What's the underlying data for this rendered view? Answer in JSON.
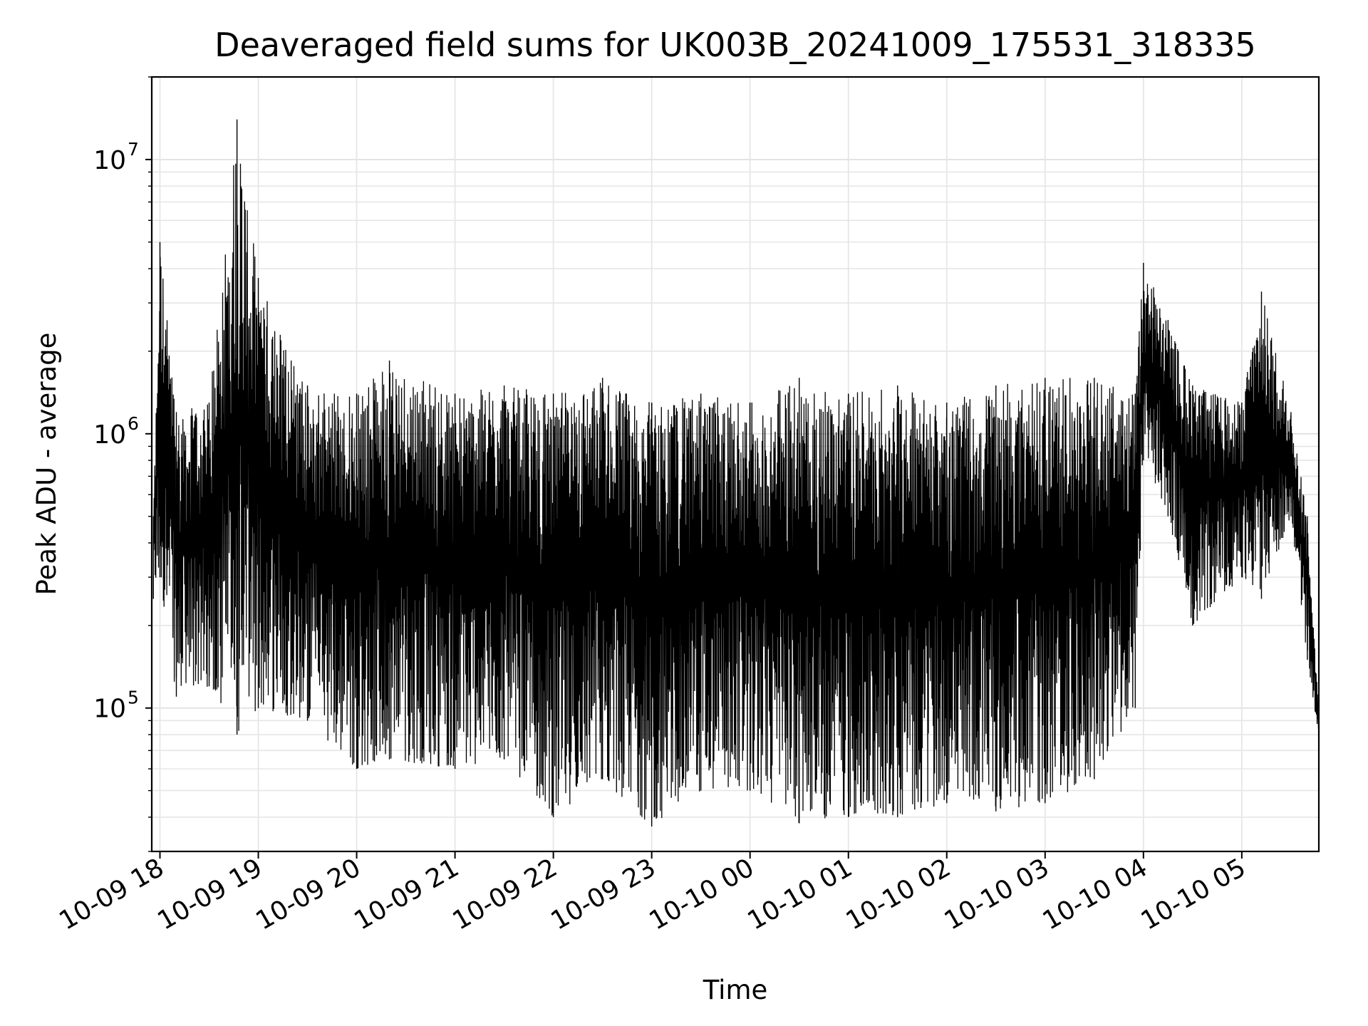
{
  "chart_data": {
    "type": "line",
    "title": "Deaveraged field sums for UK003B_20241009_175531_318335",
    "xlabel": "Time",
    "ylabel": "Peak ADU - average",
    "yscale": "log",
    "ylim": [
      30000,
      20000000
    ],
    "xlim": [
      "2024-10-09 17:55",
      "2024-10-10 05:47"
    ],
    "grid": true,
    "x_tick_labels": [
      "10-09 18",
      "10-09 19",
      "10-09 20",
      "10-09 21",
      "10-09 22",
      "10-09 23",
      "10-10 00",
      "10-10 01",
      "10-10 02",
      "10-10 03",
      "10-10 04",
      "10-10 05"
    ],
    "y_tick_labels": [
      {
        "base": "10",
        "exp": "5",
        "value": 100000
      },
      {
        "base": "10",
        "exp": "6",
        "value": 1000000
      },
      {
        "base": "10",
        "exp": "7",
        "value": 10000000
      }
    ],
    "series": [
      {
        "color": "#000000",
        "envelope": [
          {
            "t": "2024-10-09 17:56",
            "low": 250000,
            "high": 500000
          },
          {
            "t": "2024-10-09 18:00",
            "low": 300000,
            "high": 5000000
          },
          {
            "t": "2024-10-09 18:10",
            "low": 110000,
            "high": 1200000
          },
          {
            "t": "2024-10-09 18:30",
            "low": 120000,
            "high": 1300000
          },
          {
            "t": "2024-10-09 18:47",
            "low": 80000,
            "high": 14000000
          },
          {
            "t": "2024-10-09 19:00",
            "low": 100000,
            "high": 3700000
          },
          {
            "t": "2024-10-09 19:30",
            "low": 90000,
            "high": 1500000
          },
          {
            "t": "2024-10-09 20:00",
            "low": 60000,
            "high": 1400000
          },
          {
            "t": "2024-10-09 20:20",
            "low": 65000,
            "high": 1850000
          },
          {
            "t": "2024-10-09 21:00",
            "low": 60000,
            "high": 1400000
          },
          {
            "t": "2024-10-09 21:30",
            "low": 65000,
            "high": 1500000
          },
          {
            "t": "2024-10-09 22:00",
            "low": 40000,
            "high": 1400000
          },
          {
            "t": "2024-10-09 22:30",
            "low": 55000,
            "high": 1600000
          },
          {
            "t": "2024-10-09 23:00",
            "low": 37000,
            "high": 1300000
          },
          {
            "t": "2024-10-09 23:30",
            "low": 50000,
            "high": 1400000
          },
          {
            "t": "2024-10-10 00:00",
            "low": 50000,
            "high": 1300000
          },
          {
            "t": "2024-10-10 00:30",
            "low": 38000,
            "high": 1600000
          },
          {
            "t": "2024-10-10 01:00",
            "low": 40000,
            "high": 1400000
          },
          {
            "t": "2024-10-10 01:30",
            "low": 40000,
            "high": 1500000
          },
          {
            "t": "2024-10-10 02:00",
            "low": 45000,
            "high": 1300000
          },
          {
            "t": "2024-10-10 02:30",
            "low": 42000,
            "high": 1500000
          },
          {
            "t": "2024-10-10 03:00",
            "low": 45000,
            "high": 1600000
          },
          {
            "t": "2024-10-10 03:30",
            "low": 55000,
            "high": 1600000
          },
          {
            "t": "2024-10-10 03:55",
            "low": 100000,
            "high": 1400000
          },
          {
            "t": "2024-10-10 04:00",
            "low": 800000,
            "high": 4200000
          },
          {
            "t": "2024-10-10 04:15",
            "low": 500000,
            "high": 2600000
          },
          {
            "t": "2024-10-10 04:30",
            "low": 200000,
            "high": 1500000
          },
          {
            "t": "2024-10-10 05:00",
            "low": 300000,
            "high": 1300000
          },
          {
            "t": "2024-10-10 05:12",
            "low": 250000,
            "high": 3300000
          },
          {
            "t": "2024-10-10 05:30",
            "low": 500000,
            "high": 1200000
          },
          {
            "t": "2024-10-10 05:40",
            "low": 150000,
            "high": 500000
          },
          {
            "t": "2024-10-10 05:47",
            "low": 78000,
            "high": 100000
          }
        ]
      }
    ]
  }
}
